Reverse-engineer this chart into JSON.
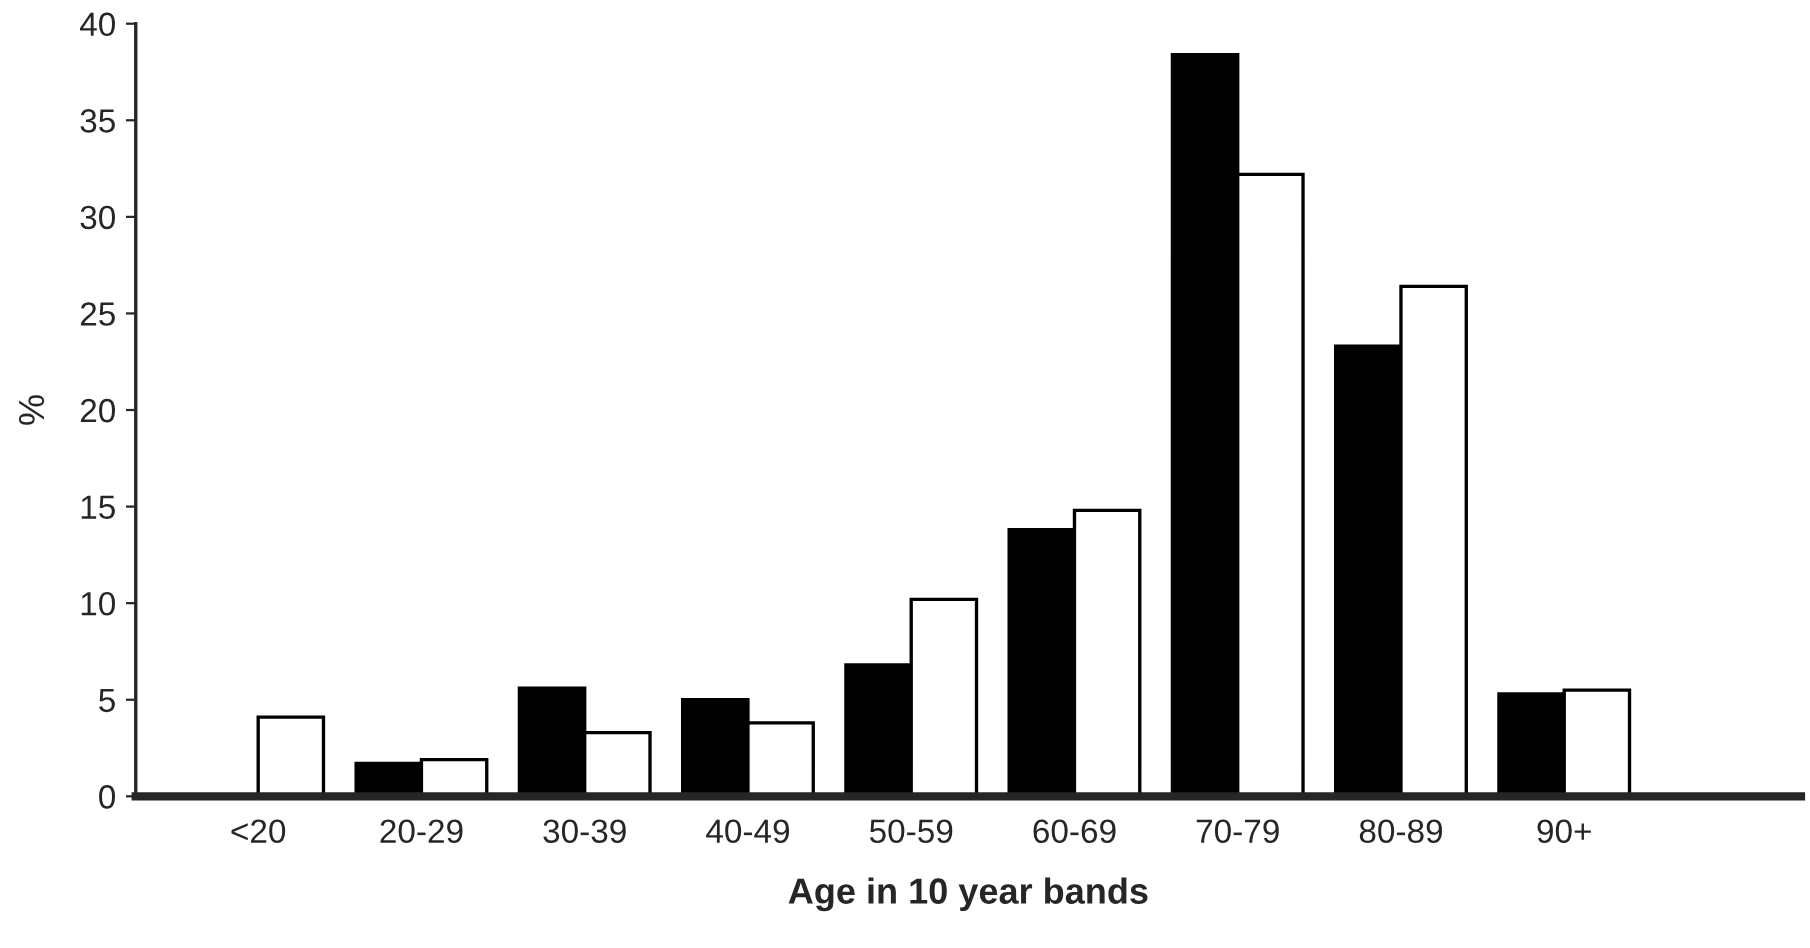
{
  "chart_data": {
    "type": "bar",
    "xlabel": "Age in 10 year bands",
    "ylabel": "%",
    "categories": [
      "<20",
      "20-29",
      "30-39",
      "40-49",
      "50-59",
      "60-69",
      "70-79",
      "80-89",
      "90+"
    ],
    "series": [
      {
        "color": "#000000",
        "values": [
          0,
          1.7,
          5.6,
          5.0,
          6.8,
          13.8,
          38.4,
          23.3,
          5.3
        ]
      },
      {
        "color": "#ffffff",
        "values": [
          4.1,
          1.9,
          3.3,
          3.8,
          10.2,
          14.8,
          32.2,
          26.4,
          5.5
        ]
      }
    ],
    "ylim": [
      0,
      40
    ],
    "yticks": [
      0,
      5,
      10,
      15,
      20,
      25,
      30,
      35,
      40
    ],
    "grid": false,
    "legend": false
  }
}
